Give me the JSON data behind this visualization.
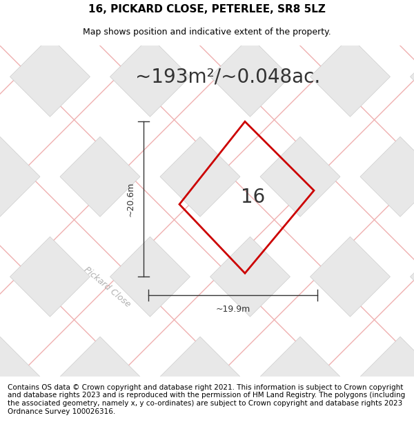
{
  "title": "16, PICKARD CLOSE, PETERLEE, SR8 5LZ",
  "subtitle": "Map shows position and indicative extent of the property.",
  "area_text": "~193m²/~0.048ac.",
  "plot_number": "16",
  "dim_width": "~19.9m",
  "dim_height": "~20.6m",
  "road_label": "Pickard Close",
  "footer_text": "Contains OS data © Crown copyright and database right 2021. This information is subject to Crown copyright and database rights 2023 and is reproduced with the permission of HM Land Registry. The polygons (including the associated geometry, namely x, y co-ordinates) are subject to Crown copyright and database rights 2023 Ordnance Survey 100026316.",
  "bg_color": "#ffffff",
  "map_bg": "#ffffff",
  "diamond_fill": "#e8e8e8",
  "diamond_edge": "#cccccc",
  "pink_line_color": "#f0b0b0",
  "plot_edge": "#cc0000",
  "title_fontsize": 11,
  "subtitle_fontsize": 9,
  "area_fontsize": 20,
  "footer_fontsize": 7.5,
  "annotation_fontsize": 9,
  "road_fontsize": 9,
  "plot_label_fontsize": 20
}
